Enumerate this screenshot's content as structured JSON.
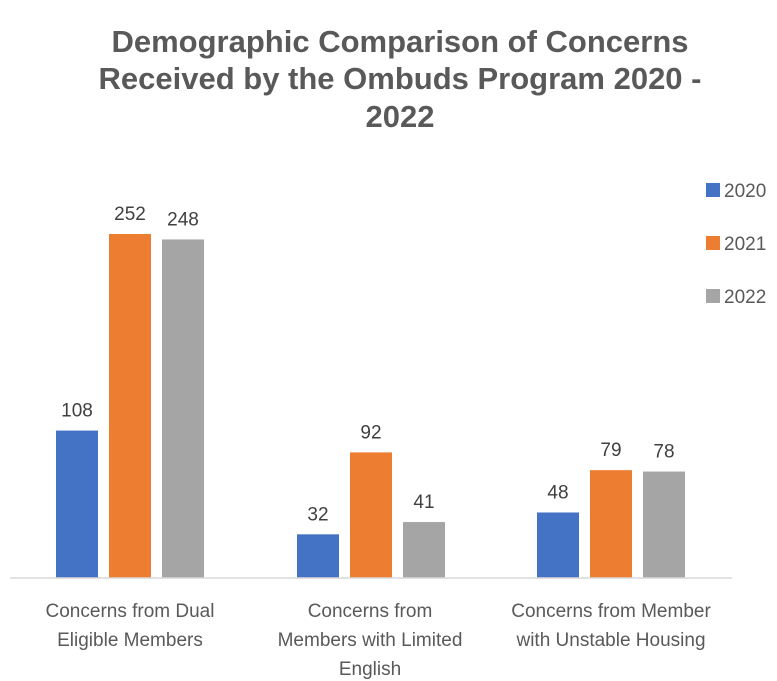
{
  "chart_data": {
    "type": "bar",
    "title_lines": [
      "Demographic Comparison of Concerns",
      "Received by the Ombuds Program 2020 -",
      "2022"
    ],
    "categories": [
      [
        "Concerns from Dual",
        "Eligible Members"
      ],
      [
        "Concerns from",
        "Members with Limited",
        "English"
      ],
      [
        "Concerns from Member",
        "with Unstable Housing"
      ]
    ],
    "series": [
      {
        "name": "2020",
        "color": "#4472C4",
        "values": [
          108,
          32,
          48
        ]
      },
      {
        "name": "2021",
        "color": "#ED7D31",
        "values": [
          252,
          92,
          79
        ]
      },
      {
        "name": "2022",
        "color": "#A5A5A5",
        "values": [
          248,
          41,
          78
        ]
      }
    ],
    "ylim": [
      0,
      270
    ],
    "grid": false,
    "legend_position": "right",
    "axis_color": "#D9D9D9"
  }
}
